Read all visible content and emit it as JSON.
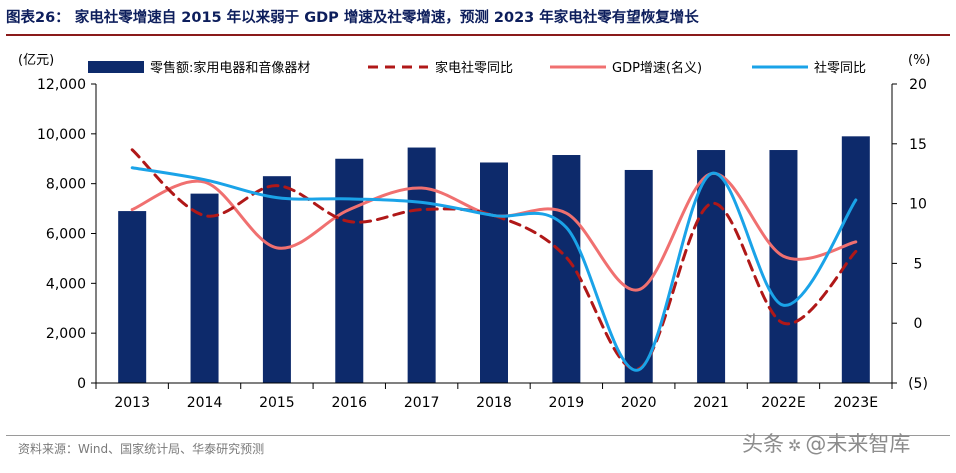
{
  "title": "图表26： 家电社零增速自 2015 年以来弱于 GDP 增速及社零增速，预测 2023 年家电社零有望恢复增长",
  "source": "资料来源：Wind、国家统计局、华泰研究预测",
  "watermark": {
    "prefix": "头条",
    "handle": "@未来智库",
    "logo_text": "未来智库"
  },
  "colors": {
    "bar": "#0d2a6b",
    "dashed": "#b01818",
    "gdp": "#f07070",
    "retail": "#1aa3e8",
    "title": "#0d1e5c"
  },
  "chart_data": {
    "type": "bar+line",
    "title": "",
    "categories": [
      "2013",
      "2014",
      "2015",
      "2016",
      "2017",
      "2018",
      "2019",
      "2020",
      "2021",
      "2022E",
      "2023E"
    ],
    "y_left": {
      "label": "(亿元)",
      "ylim": [
        0,
        12000
      ],
      "ticks": [
        "0",
        "2,000",
        "4,000",
        "6,000",
        "8,000",
        "10,000",
        "12,000"
      ],
      "tick_values": [
        0,
        2000,
        4000,
        6000,
        8000,
        10000,
        12000
      ]
    },
    "y_right": {
      "label": "(%)",
      "ylim": [
        -5,
        20
      ],
      "ticks": [
        "(5)",
        "0",
        "5",
        "10",
        "15",
        "20"
      ],
      "tick_values": [
        -5,
        0,
        5,
        10,
        15,
        20
      ]
    },
    "series": [
      {
        "name": "零售额:家用电器和音像器材",
        "type": "bar",
        "axis": "left",
        "values": [
          6900,
          7600,
          8300,
          9000,
          9450,
          8850,
          9150,
          8550,
          9350,
          9350,
          9900
        ]
      },
      {
        "name": "家电社零同比",
        "type": "line",
        "style": "dashed",
        "axis": "right",
        "values": [
          14.5,
          9.0,
          11.5,
          8.5,
          9.5,
          9.0,
          5.5,
          -3.8,
          10.0,
          0.0,
          6.0
        ]
      },
      {
        "name": "GDP增速(名义)",
        "type": "line",
        "style": "solid",
        "axis": "right",
        "values": [
          9.5,
          11.8,
          6.3,
          9.5,
          11.3,
          9.0,
          9.2,
          2.8,
          12.5,
          5.6,
          6.8
        ]
      },
      {
        "name": "社零同比",
        "type": "line",
        "style": "solid",
        "axis": "right",
        "values": [
          13.0,
          12.0,
          10.5,
          10.4,
          10.1,
          9.0,
          8.0,
          -3.9,
          12.5,
          1.5,
          10.3
        ]
      }
    ],
    "legend_position": "top"
  }
}
